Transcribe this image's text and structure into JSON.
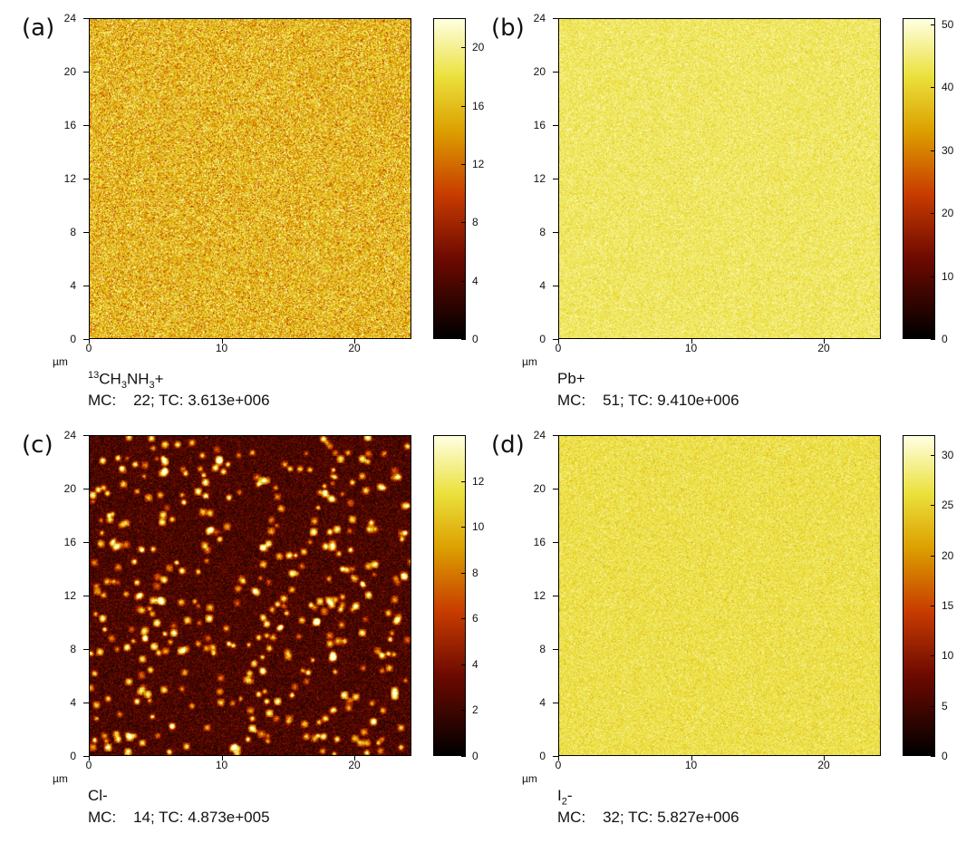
{
  "colors": {
    "hot_low": "#000000",
    "hot_mid": "#c02000",
    "hot_high": "#ffffe0"
  },
  "chart_data": [
    {
      "type": "heatmap",
      "panel_label": "(a)",
      "species_prefix_sup": "13",
      "species": "CH3NH3+",
      "species_parts": [
        "CH",
        "3",
        "NH",
        "3",
        "+"
      ],
      "mc_label": "MC:",
      "mc_value": "22",
      "tc_text": "; TC: 3.613e+006",
      "axis_unit": "µm",
      "x_ticks": [
        "0",
        "10",
        "20"
      ],
      "y_ticks": [
        "0",
        "4",
        "8",
        "12",
        "16",
        "20",
        "24"
      ],
      "xlim": [
        0,
        24.3
      ],
      "ylim": [
        0,
        24
      ],
      "colorbar_ticks": [
        "0",
        "4",
        "8",
        "12",
        "16",
        "20"
      ],
      "colorbar_max": 22,
      "mean_level": 0.72,
      "spread": 0.13,
      "spots": 0
    },
    {
      "type": "heatmap",
      "panel_label": "(b)",
      "species": "Pb+",
      "mc_label": "MC:",
      "mc_value": "51",
      "tc_text": "; TC: 9.410e+006",
      "axis_unit": "µm",
      "x_ticks": [
        "0",
        "10",
        "20"
      ],
      "y_ticks": [
        "0",
        "4",
        "8",
        "12",
        "16",
        "20",
        "24"
      ],
      "xlim": [
        0,
        24.3
      ],
      "ylim": [
        0,
        24
      ],
      "colorbar_ticks": [
        "0",
        "10",
        "20",
        "30",
        "40",
        "50"
      ],
      "colorbar_max": 51,
      "mean_level": 0.86,
      "spread": 0.05,
      "spots": 0
    },
    {
      "type": "heatmap",
      "panel_label": "(c)",
      "species": "Cl-",
      "mc_label": "MC:",
      "mc_value": "14",
      "tc_text": "; TC: 4.873e+005",
      "axis_unit": "µm",
      "x_ticks": [
        "0",
        "10",
        "20"
      ],
      "y_ticks": [
        "0",
        "4",
        "8",
        "12",
        "16",
        "20",
        "24"
      ],
      "xlim": [
        0,
        24.3
      ],
      "ylim": [
        0,
        24
      ],
      "colorbar_ticks": [
        "0",
        "2",
        "4",
        "6",
        "8",
        "10",
        "12"
      ],
      "colorbar_max": 14,
      "mean_level": 0.17,
      "spread": 0.07,
      "spots": 420
    },
    {
      "type": "heatmap",
      "panel_label": "(d)",
      "species": "I2-",
      "species_parts": [
        "I",
        "2",
        "-"
      ],
      "mc_label": "MC:",
      "mc_value": "32",
      "tc_text": "; TC: 5.827e+006",
      "axis_unit": "µm",
      "x_ticks": [
        "0",
        "10",
        "20"
      ],
      "y_ticks": [
        "0",
        "4",
        "8",
        "12",
        "16",
        "20",
        "24"
      ],
      "xlim": [
        0,
        24.3
      ],
      "ylim": [
        0,
        24
      ],
      "colorbar_ticks": [
        "0",
        "5",
        "10",
        "15",
        "20",
        "25",
        "30"
      ],
      "colorbar_max": 32,
      "mean_level": 0.83,
      "spread": 0.05,
      "spots": 0
    }
  ]
}
